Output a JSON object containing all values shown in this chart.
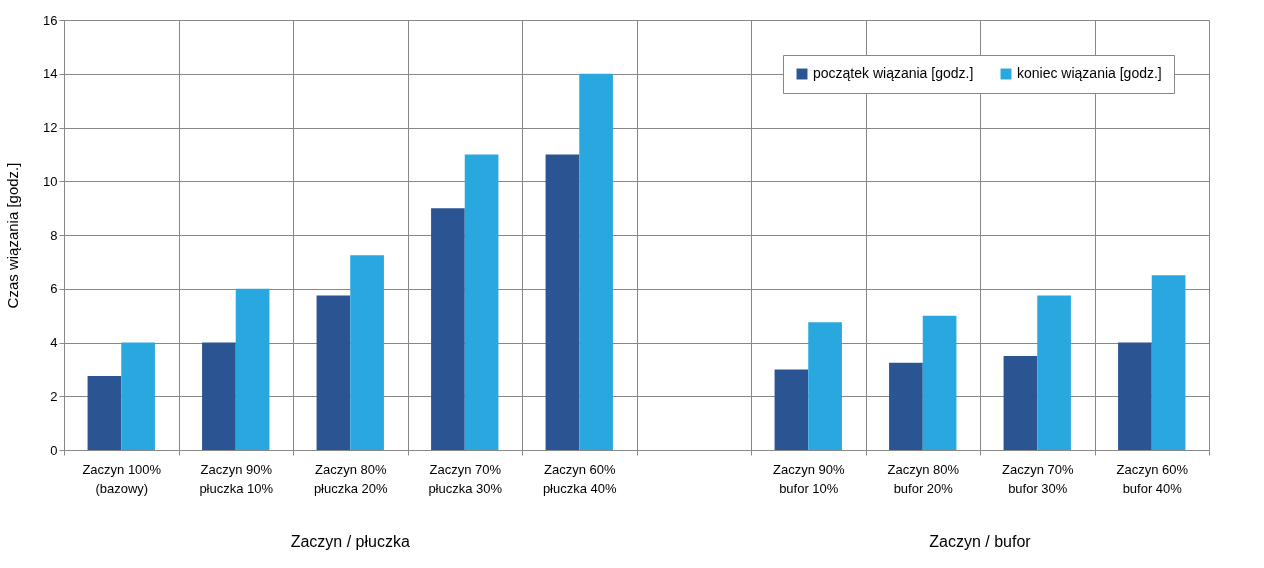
{
  "chart_data": {
    "type": "bar",
    "categories": [
      "Zaczyn 100%\n(bazowy)",
      "Zaczyn 90%\npłuczka 10%",
      "Zaczyn 80%\npłuczka 20%",
      "Zaczyn 70%\npłuczka 30%",
      "Zaczyn 60%\npłuczka 40%",
      null,
      "Zaczyn 90%\nbufor 10%",
      "Zaczyn 80%\nbufor 20%",
      "Zaczyn 70%\nbufor 30%",
      "Zaczyn 60%\nbufor 40%"
    ],
    "series": [
      {
        "name": "początek wiązania [godz.]",
        "color": "#2a5492",
        "values": [
          2.75,
          4,
          5.75,
          9,
          11,
          null,
          3,
          3.25,
          3.5,
          4
        ]
      },
      {
        "name": "koniec wiązania [godz.]",
        "color": "#29a8e0",
        "values": [
          4,
          6,
          7.25,
          11,
          14,
          null,
          4.75,
          5,
          5.75,
          6.5
        ]
      }
    ],
    "ylabel": "Czas wiązania [godz.]",
    "ylim": [
      0,
      16
    ],
    "yticks": [
      0,
      2,
      4,
      6,
      8,
      10,
      12,
      14,
      16
    ],
    "grid": true,
    "legend": "top right",
    "annotations": [
      "Zaczyn / płuczka",
      "Zaczyn / bufor"
    ]
  }
}
